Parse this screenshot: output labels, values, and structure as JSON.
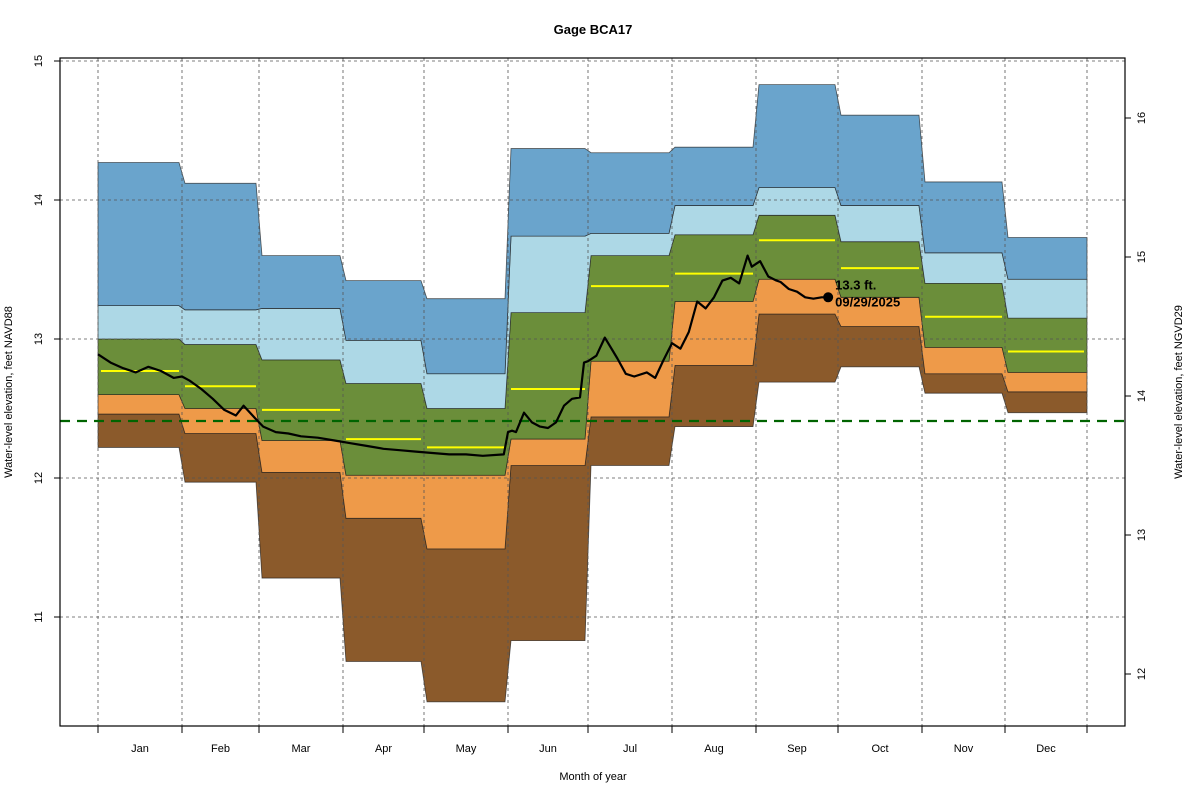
{
  "chart_data": {
    "type": "area",
    "title": "Gage BCA17",
    "xlabel": "Month of year",
    "ylabel_left": "Water-level elevation, feet NAVD88",
    "ylabel_right": "Water-level elevation, feet NGVD29",
    "ylim_left": [
      10.3,
      15.05
    ],
    "left_ticks": [
      11,
      12,
      13,
      14,
      15
    ],
    "right_ticks": [
      12,
      13,
      14,
      15,
      16
    ],
    "right_axis_offset": 1.41,
    "grid": true,
    "months": [
      "Jan",
      "Feb",
      "Mar",
      "Apr",
      "May",
      "Jun",
      "Jul",
      "Aug",
      "Sep",
      "Oct",
      "Nov",
      "Dec"
    ],
    "band_colors": {
      "min_p10": "#8B5A2B",
      "p10_p25": "#EE9A49",
      "p25_p75": "#6B8E3A",
      "p75_p90": "#ADD8E6",
      "p90_max": "#6AA4CC",
      "median": "#FFFF00",
      "reference": "#006400",
      "observed": "#000000"
    },
    "stats": {
      "min": [
        12.22,
        11.97,
        11.28,
        10.68,
        10.39,
        10.83,
        12.09,
        12.37,
        12.69,
        12.8,
        12.61,
        12.47
      ],
      "p10": [
        12.46,
        12.32,
        12.04,
        11.71,
        11.49,
        12.09,
        12.44,
        12.81,
        13.18,
        13.09,
        12.75,
        12.62
      ],
      "p25": [
        12.6,
        12.5,
        12.27,
        12.02,
        12.02,
        12.28,
        12.84,
        13.27,
        13.43,
        13.3,
        12.94,
        12.76
      ],
      "median": [
        12.77,
        12.66,
        12.49,
        12.28,
        12.22,
        12.64,
        13.38,
        13.47,
        13.71,
        13.51,
        13.16,
        12.91
      ],
      "p75": [
        13.0,
        12.96,
        12.85,
        12.68,
        12.5,
        13.19,
        13.6,
        13.75,
        13.89,
        13.7,
        13.4,
        13.15
      ],
      "p90": [
        13.24,
        13.21,
        13.22,
        12.99,
        12.75,
        13.74,
        13.76,
        13.96,
        14.09,
        13.96,
        13.62,
        13.43
      ],
      "max": [
        14.27,
        14.12,
        13.6,
        13.42,
        13.29,
        14.37,
        14.34,
        14.38,
        14.83,
        14.61,
        14.13,
        13.73
      ]
    },
    "reference_line": 12.41,
    "observed_series": {
      "name": "Observed daily water level",
      "x_month": [
        0.0,
        0.15,
        0.3,
        0.45,
        0.6,
        0.75,
        0.9,
        1.0,
        1.1,
        1.25,
        1.4,
        1.55,
        1.7,
        1.8,
        1.85,
        1.95,
        2.05,
        2.2,
        2.35,
        2.5,
        2.7,
        2.9,
        3.1,
        3.3,
        3.5,
        3.7,
        3.9,
        4.1,
        4.3,
        4.5,
        4.7,
        4.95,
        5.0,
        5.05,
        5.1,
        5.2,
        5.3,
        5.4,
        5.5,
        5.6,
        5.7,
        5.8,
        5.9,
        5.95,
        6.0,
        6.1,
        6.2,
        6.3,
        6.35,
        6.45,
        6.55,
        6.7,
        6.8,
        6.9,
        7.0,
        7.1,
        7.2,
        7.3,
        7.4,
        7.5,
        7.6,
        7.7,
        7.8,
        7.9,
        7.95,
        8.05,
        8.15,
        8.25,
        8.3,
        8.4,
        8.5,
        8.6,
        8.7,
        8.8,
        8.88
      ],
      "y": [
        12.89,
        12.83,
        12.79,
        12.76,
        12.8,
        12.77,
        12.72,
        12.73,
        12.7,
        12.64,
        12.57,
        12.49,
        12.45,
        12.52,
        12.49,
        12.43,
        12.37,
        12.33,
        12.32,
        12.3,
        12.29,
        12.27,
        12.25,
        12.23,
        12.21,
        12.2,
        12.19,
        12.18,
        12.17,
        12.17,
        12.16,
        12.17,
        12.33,
        12.34,
        12.33,
        12.47,
        12.4,
        12.37,
        12.36,
        12.4,
        12.52,
        12.57,
        12.58,
        12.83,
        12.84,
        12.88,
        13.01,
        12.91,
        12.86,
        12.75,
        12.73,
        12.76,
        12.72,
        12.85,
        12.97,
        12.93,
        13.05,
        13.27,
        13.22,
        13.3,
        13.42,
        13.44,
        13.4,
        13.6,
        13.52,
        13.56,
        13.45,
        13.42,
        13.41,
        13.36,
        13.34,
        13.3,
        13.29,
        13.3,
        13.3
      ]
    },
    "annotation": {
      "value_label": "13.3 ft.",
      "date_label": "09/29/2025",
      "x_month": 8.88,
      "y": 13.3
    }
  }
}
